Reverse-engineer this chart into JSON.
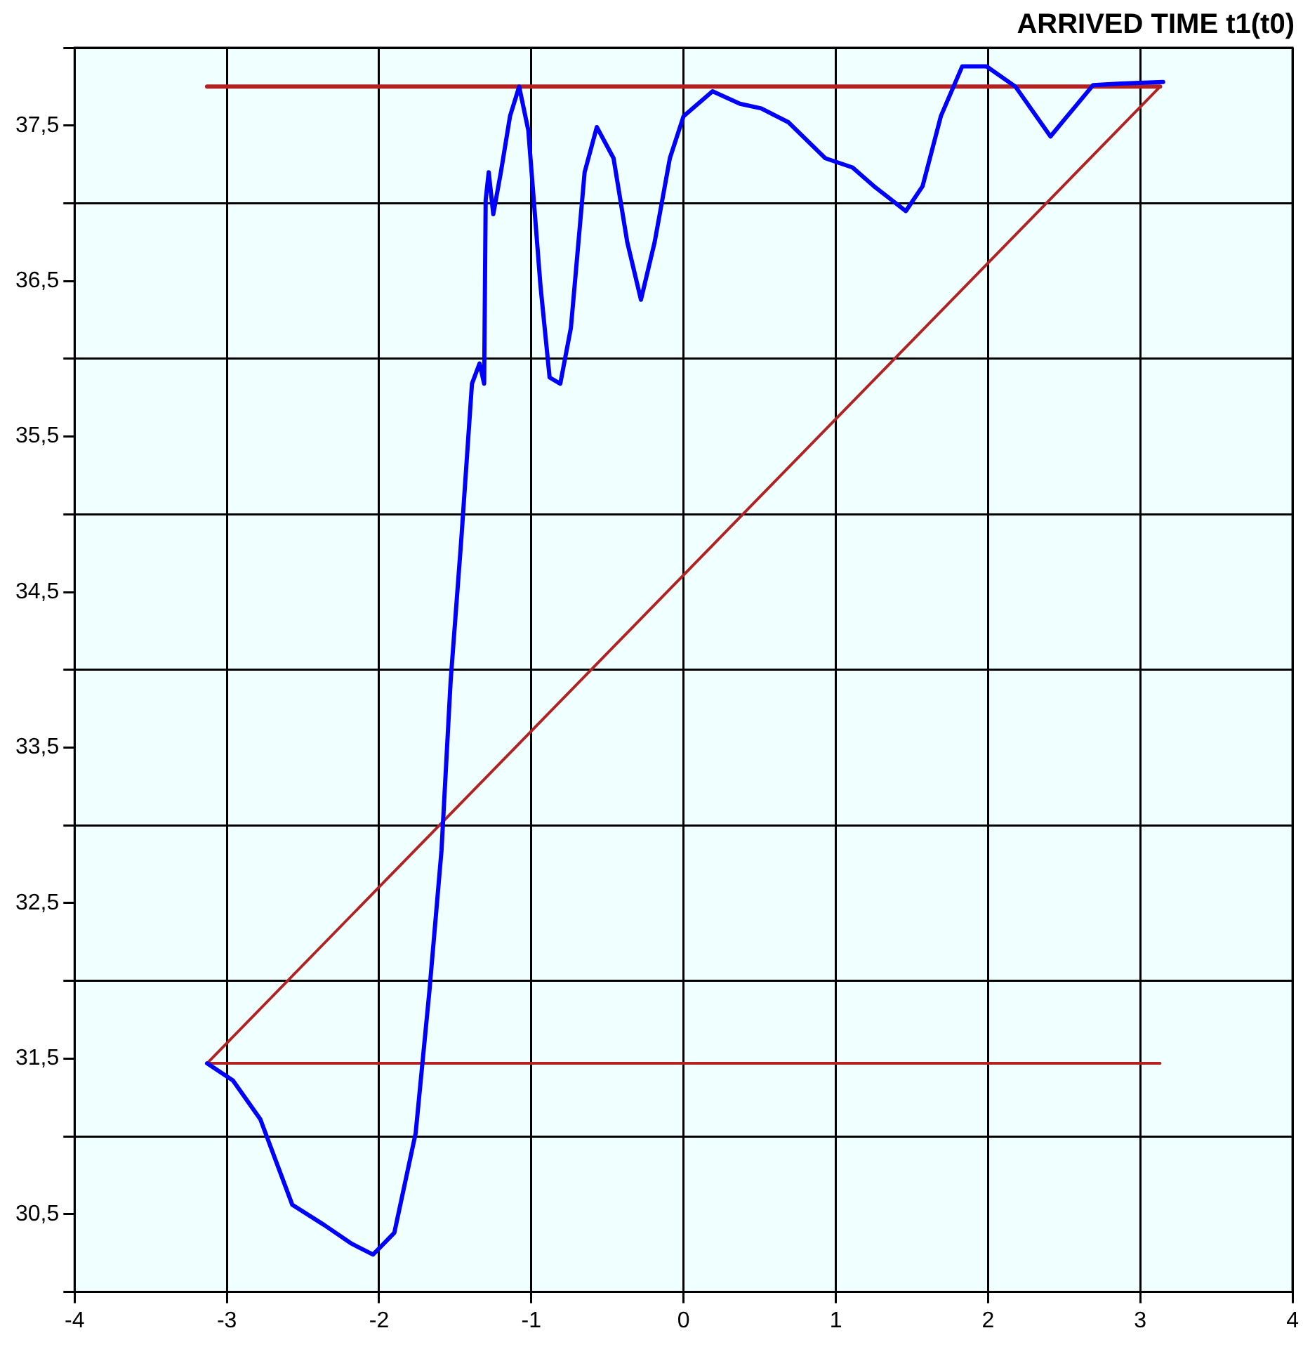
{
  "chart_data": {
    "type": "line",
    "title": "ARRIVED TIME t1(t0)",
    "xlim": [
      -4,
      4
    ],
    "xticks": [
      -4,
      -3,
      -2,
      -1,
      0,
      1,
      2,
      3,
      4
    ],
    "ylim": [
      30,
      38
    ],
    "yticks": [
      {
        "value": 30,
        "label": null
      },
      {
        "value": 30.5,
        "label": "30,5"
      },
      {
        "value": 31,
        "label": null
      },
      {
        "value": 31.5,
        "label": "31,5"
      },
      {
        "value": 32,
        "label": null
      },
      {
        "value": 32.5,
        "label": "32,5"
      },
      {
        "value": 33,
        "label": null
      },
      {
        "value": 33.5,
        "label": "33,5"
      },
      {
        "value": 34,
        "label": null
      },
      {
        "value": 34.5,
        "label": "34,5"
      },
      {
        "value": 35,
        "label": null
      },
      {
        "value": 35.5,
        "label": "35,5"
      },
      {
        "value": 36,
        "label": null
      },
      {
        "value": 36.5,
        "label": "36,5"
      },
      {
        "value": 37,
        "label": null
      },
      {
        "value": 37.5,
        "label": "37,5"
      },
      {
        "value": 38,
        "label": null
      }
    ],
    "grid": true,
    "legend": false,
    "marker": "none",
    "line_style": "solid",
    "series": [
      {
        "color": "#0000ff",
        "x": [
          -3.13,
          -2.96,
          -2.78,
          -2.57,
          -2.36,
          -2.18,
          -2.04,
          -1.9,
          -1.76,
          -1.67,
          -1.59,
          -1.53,
          -1.46,
          -1.39,
          -1.34,
          -1.31,
          -1.3,
          -1.28,
          -1.25,
          -1.2,
          -1.14,
          -1.08,
          -1.02,
          -0.94,
          -0.88,
          -0.81,
          -0.74,
          -0.65,
          -0.57,
          -0.46,
          -0.37,
          -0.28,
          -0.19,
          -0.09,
          0,
          0.19,
          0.37,
          0.51,
          0.69,
          0.93,
          1.11,
          1.25,
          1.46,
          1.57,
          1.69,
          1.83,
          1.99,
          2.18,
          2.41,
          2.52,
          2.69,
          2.87,
          3.15
        ],
        "values": [
          31.47,
          31.36,
          31.11,
          30.56,
          30.43,
          30.31,
          30.24,
          30.38,
          31.02,
          31.93,
          32.84,
          33.93,
          34.84,
          35.84,
          35.97,
          35.84,
          37.02,
          37.2,
          36.93,
          37.2,
          37.56,
          37.75,
          37.47,
          36.47,
          35.88,
          35.84,
          36.2,
          37.2,
          37.49,
          37.29,
          36.75,
          36.38,
          36.75,
          37.29,
          37.56,
          37.72,
          37.64,
          37.61,
          37.52,
          37.29,
          37.23,
          37.11,
          36.95,
          37.11,
          37.56,
          37.88,
          37.88,
          37.75,
          37.43,
          37.56,
          37.76,
          37.77,
          37.78
        ]
      },
      {
        "color": "#b22222",
        "x": [
          -3.13,
          3.13
        ],
        "values": [
          37.75,
          37.75
        ]
      },
      {
        "color": "#b22222",
        "x": [
          -3.13,
          3.13
        ],
        "values": [
          31.47,
          37.75
        ]
      },
      {
        "color": "#b22222",
        "x": [
          -3.13,
          3.13
        ],
        "values": [
          31.47,
          31.47
        ]
      }
    ]
  }
}
